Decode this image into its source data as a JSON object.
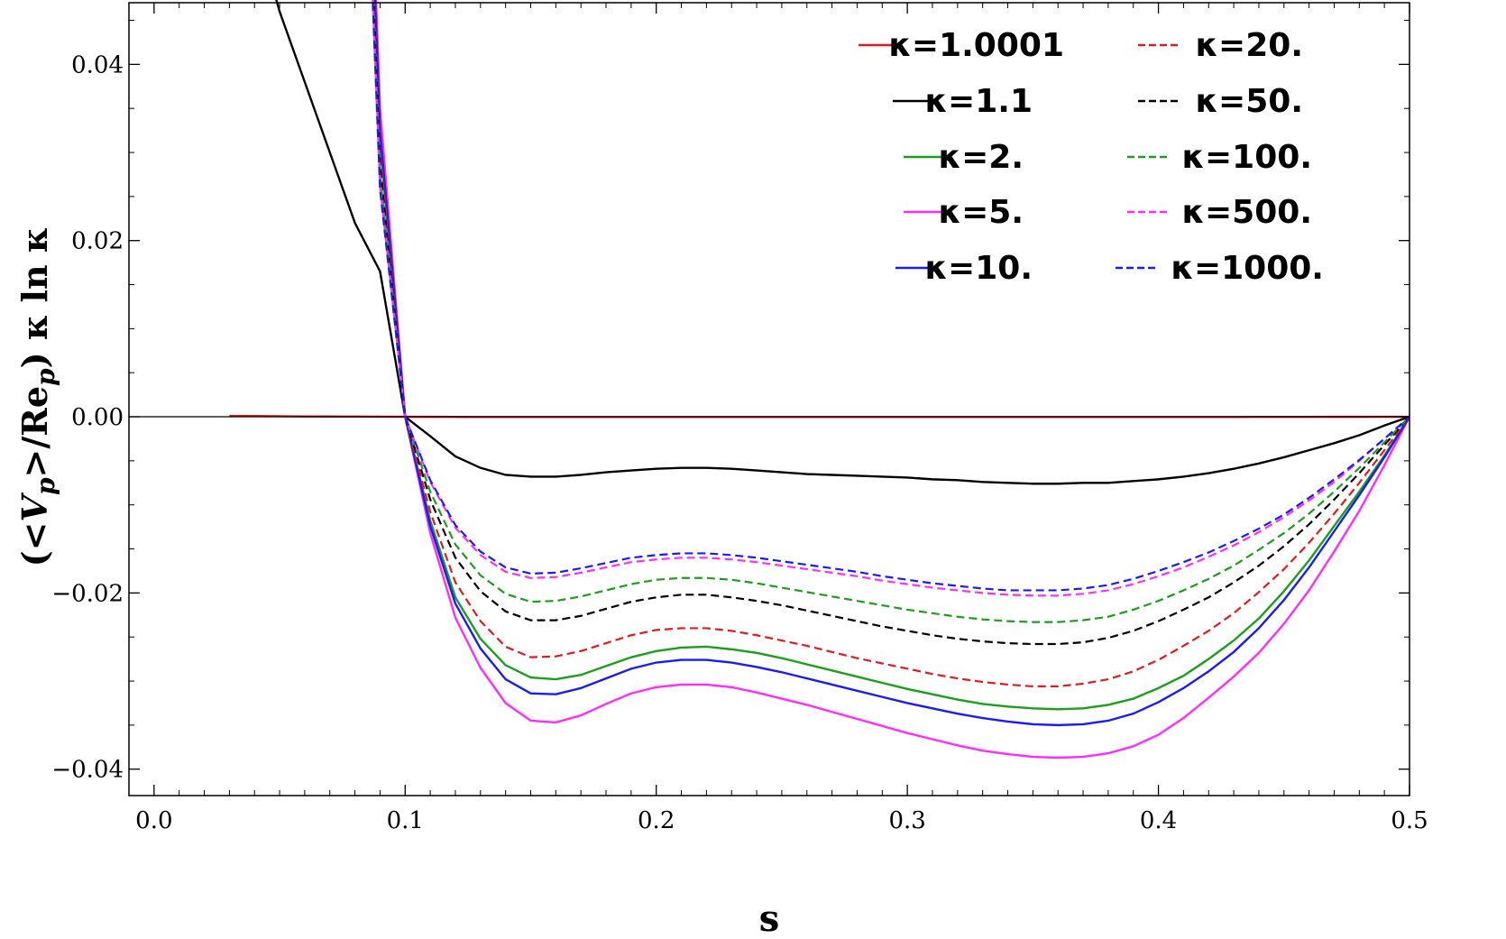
{
  "chart_data": {
    "type": "line",
    "xlabel": "s",
    "ylabel_parts": {
      "open": "(<",
      "v": "V",
      "p1": "p",
      "mid": ">/Re",
      "p2": "p",
      "close": ") κ ln κ"
    },
    "xlim": [
      -0.01,
      0.5
    ],
    "ylim": [
      -0.043,
      0.047
    ],
    "x_ticks": [
      0.0,
      0.1,
      0.2,
      0.3,
      0.4,
      0.5
    ],
    "x_tick_labels": [
      "0.0",
      "0.1",
      "0.2",
      "0.3",
      "0.4",
      "0.5"
    ],
    "y_ticks": [
      0.04,
      0.02,
      0.0,
      -0.02,
      -0.04
    ],
    "y_tick_labels": [
      "0.04",
      "0.02",
      "0.00",
      "−0.02",
      "−0.04"
    ],
    "grid": false,
    "legend_placement": "top-right",
    "zero_line": true,
    "x": [
      0.03,
      0.04,
      0.05,
      0.06,
      0.07,
      0.08,
      0.09,
      0.1,
      0.11,
      0.12,
      0.13,
      0.14,
      0.15,
      0.16,
      0.17,
      0.18,
      0.19,
      0.2,
      0.21,
      0.22,
      0.23,
      0.24,
      0.25,
      0.26,
      0.27,
      0.28,
      0.29,
      0.3,
      0.31,
      0.32,
      0.33,
      0.34,
      0.35,
      0.36,
      0.37,
      0.38,
      0.39,
      0.4,
      0.41,
      0.42,
      0.43,
      0.44,
      0.45,
      0.46,
      0.47,
      0.48,
      0.49,
      0.5
    ],
    "series": [
      {
        "name": "κ=1.0001",
        "color": "#e41a1c",
        "dash": false,
        "values": [
          0.0001,
          8e-05,
          6e-05,
          4e-05,
          3e-05,
          2e-05,
          1e-05,
          0,
          -1e-05,
          -2e-05,
          -3e-05,
          -3e-05,
          -3e-05,
          -3e-05,
          -3e-05,
          -3e-05,
          -3e-05,
          -3e-05,
          -3e-05,
          -3e-05,
          -3e-05,
          -3e-05,
          -3e-05,
          -3e-05,
          -3e-05,
          -3e-05,
          -3e-05,
          -3e-05,
          -3e-05,
          -3e-05,
          -3e-05,
          -3e-05,
          -3e-05,
          -3e-05,
          -3e-05,
          -3e-05,
          -3e-05,
          -3e-05,
          -3e-05,
          -3e-05,
          -3e-05,
          -2e-05,
          -2e-05,
          -2e-05,
          -1e-05,
          -1e-05,
          0,
          0
        ]
      },
      {
        "name": "κ=1.1",
        "color": "#000000",
        "dash": false,
        "values": [
          0.066,
          0.056,
          0.046,
          0.038,
          0.03,
          0.022,
          0.0165,
          0.0,
          -0.0022,
          -0.0045,
          -0.0058,
          -0.0066,
          -0.0068,
          -0.0068,
          -0.0066,
          -0.0063,
          -0.0061,
          -0.0059,
          -0.0058,
          -0.0058,
          -0.0059,
          -0.0061,
          -0.0063,
          -0.0065,
          -0.0066,
          -0.0067,
          -0.0068,
          -0.0069,
          -0.0071,
          -0.0072,
          -0.0074,
          -0.0075,
          -0.0076,
          -0.0076,
          -0.0075,
          -0.0075,
          -0.0073,
          -0.0071,
          -0.0068,
          -0.0064,
          -0.0059,
          -0.0053,
          -0.0046,
          -0.0038,
          -0.003,
          -0.0021,
          -0.001,
          0.0
        ]
      },
      {
        "name": "κ=2.",
        "color": "#1aa01a",
        "dash": false,
        "values": [
          null,
          null,
          null,
          null,
          null,
          null,
          0.031,
          0.0,
          -0.0118,
          -0.0205,
          -0.0252,
          -0.0282,
          -0.0296,
          -0.0298,
          -0.0293,
          -0.0283,
          -0.0273,
          -0.0266,
          -0.0262,
          -0.0261,
          -0.0264,
          -0.0268,
          -0.0274,
          -0.0281,
          -0.0288,
          -0.0295,
          -0.0302,
          -0.0309,
          -0.0315,
          -0.0321,
          -0.0326,
          -0.0329,
          -0.0331,
          -0.0332,
          -0.0331,
          -0.0327,
          -0.032,
          -0.0308,
          -0.0294,
          -0.0275,
          -0.0254,
          -0.0229,
          -0.0198,
          -0.0163,
          -0.0124,
          -0.0085,
          -0.0044,
          0.0
        ]
      },
      {
        "name": "κ=5.",
        "color": "#ff2bff",
        "dash": false,
        "values": [
          null,
          null,
          null,
          null,
          null,
          null,
          0.035,
          0.0,
          -0.0132,
          -0.0228,
          -0.0285,
          -0.0325,
          -0.0345,
          -0.0347,
          -0.0339,
          -0.0326,
          -0.0314,
          -0.0307,
          -0.0304,
          -0.0304,
          -0.0307,
          -0.0313,
          -0.032,
          -0.0327,
          -0.0335,
          -0.0343,
          -0.0351,
          -0.0359,
          -0.0366,
          -0.0373,
          -0.0379,
          -0.0383,
          -0.0386,
          -0.0387,
          -0.0386,
          -0.0382,
          -0.0374,
          -0.0361,
          -0.0342,
          -0.0319,
          -0.0295,
          -0.0268,
          -0.0235,
          -0.0197,
          -0.0153,
          -0.0107,
          -0.0055,
          0.0
        ]
      },
      {
        "name": "κ=10.",
        "color": "#1a1aff",
        "dash": false,
        "values": [
          null,
          null,
          null,
          null,
          null,
          null,
          0.0325,
          0.0,
          -0.0124,
          -0.0212,
          -0.0263,
          -0.0298,
          -0.0314,
          -0.0315,
          -0.0308,
          -0.0297,
          -0.0286,
          -0.0279,
          -0.0276,
          -0.0276,
          -0.0279,
          -0.0284,
          -0.029,
          -0.0297,
          -0.0304,
          -0.0311,
          -0.0318,
          -0.0325,
          -0.0331,
          -0.0337,
          -0.0342,
          -0.0346,
          -0.0349,
          -0.035,
          -0.0349,
          -0.0345,
          -0.0337,
          -0.0324,
          -0.0308,
          -0.0289,
          -0.0267,
          -0.024,
          -0.0208,
          -0.0171,
          -0.013,
          -0.0089,
          -0.0046,
          0.0
        ]
      },
      {
        "name": "κ=20.",
        "color": "#e41a1c",
        "dash": true,
        "values": [
          null,
          null,
          null,
          null,
          null,
          null,
          0.03,
          0.0,
          -0.0108,
          -0.0188,
          -0.0232,
          -0.0261,
          -0.0273,
          -0.0272,
          -0.0266,
          -0.0257,
          -0.0248,
          -0.0242,
          -0.024,
          -0.024,
          -0.0243,
          -0.0248,
          -0.0254,
          -0.026,
          -0.0267,
          -0.0274,
          -0.028,
          -0.0286,
          -0.0292,
          -0.0297,
          -0.0301,
          -0.0304,
          -0.0306,
          -0.0306,
          -0.0303,
          -0.0298,
          -0.0289,
          -0.0276,
          -0.026,
          -0.0243,
          -0.0223,
          -0.0199,
          -0.0173,
          -0.0143,
          -0.011,
          -0.0075,
          -0.0038,
          0.0
        ]
      },
      {
        "name": "κ=50.",
        "color": "#000000",
        "dash": true,
        "values": [
          null,
          null,
          null,
          null,
          null,
          null,
          0.0285,
          0.0,
          -0.0094,
          -0.016,
          -0.0198,
          -0.0221,
          -0.0231,
          -0.0231,
          -0.0226,
          -0.0218,
          -0.021,
          -0.0205,
          -0.0202,
          -0.0202,
          -0.0205,
          -0.0209,
          -0.0214,
          -0.022,
          -0.0226,
          -0.0232,
          -0.0238,
          -0.0243,
          -0.0248,
          -0.0252,
          -0.0255,
          -0.0257,
          -0.0258,
          -0.0258,
          -0.0256,
          -0.0251,
          -0.0243,
          -0.0232,
          -0.0219,
          -0.0205,
          -0.0188,
          -0.0169,
          -0.0147,
          -0.0122,
          -0.0094,
          -0.0064,
          -0.0032,
          0.0
        ]
      },
      {
        "name": "κ=100.",
        "color": "#1aa01a",
        "dash": true,
        "values": [
          null,
          null,
          null,
          null,
          null,
          null,
          0.0275,
          0.0,
          -0.0085,
          -0.0145,
          -0.018,
          -0.0201,
          -0.021,
          -0.0209,
          -0.0204,
          -0.0197,
          -0.019,
          -0.0185,
          -0.0183,
          -0.0183,
          -0.0185,
          -0.0189,
          -0.0194,
          -0.0199,
          -0.0204,
          -0.0209,
          -0.0214,
          -0.0219,
          -0.0223,
          -0.0227,
          -0.023,
          -0.0232,
          -0.0233,
          -0.0233,
          -0.0231,
          -0.0227,
          -0.0219,
          -0.0209,
          -0.0197,
          -0.0184,
          -0.0169,
          -0.0151,
          -0.0132,
          -0.011,
          -0.0085,
          -0.0058,
          -0.0029,
          0.0
        ]
      },
      {
        "name": "κ=500.",
        "color": "#ff2bff",
        "dash": true,
        "values": [
          null,
          null,
          null,
          null,
          null,
          null,
          0.0262,
          0.0,
          -0.0074,
          -0.0126,
          -0.0157,
          -0.0176,
          -0.0183,
          -0.0182,
          -0.0177,
          -0.0171,
          -0.0165,
          -0.0162,
          -0.016,
          -0.016,
          -0.0162,
          -0.0165,
          -0.0169,
          -0.0173,
          -0.0177,
          -0.0181,
          -0.0186,
          -0.019,
          -0.0194,
          -0.0197,
          -0.02,
          -0.0202,
          -0.0203,
          -0.0203,
          -0.0201,
          -0.0197,
          -0.019,
          -0.0181,
          -0.0171,
          -0.0159,
          -0.0146,
          -0.0131,
          -0.0114,
          -0.0095,
          -0.0074,
          -0.005,
          -0.0025,
          0.0
        ]
      },
      {
        "name": "κ=1000.",
        "color": "#1a1aff",
        "dash": true,
        "values": [
          null,
          null,
          null,
          null,
          null,
          null,
          0.0258,
          0.0,
          -0.0072,
          -0.0123,
          -0.0153,
          -0.0171,
          -0.0178,
          -0.0177,
          -0.0172,
          -0.0166,
          -0.016,
          -0.0157,
          -0.0155,
          -0.0155,
          -0.0157,
          -0.016,
          -0.0164,
          -0.0168,
          -0.0172,
          -0.0176,
          -0.0181,
          -0.0185,
          -0.0189,
          -0.0192,
          -0.0195,
          -0.0197,
          -0.0197,
          -0.0197,
          -0.0195,
          -0.0191,
          -0.0184,
          -0.0175,
          -0.0165,
          -0.0154,
          -0.0141,
          -0.0127,
          -0.0111,
          -0.0092,
          -0.0071,
          -0.0049,
          -0.0025,
          0.0
        ]
      }
    ],
    "steep_branch": {
      "note_free": true,
      "x": [
        0.07,
        0.075,
        0.08,
        0.085,
        0.09,
        0.095,
        0.1
      ],
      "scale": [
        1.0,
        0.86,
        0.7,
        0.53,
        0.36,
        0.18,
        0.0
      ]
    }
  }
}
